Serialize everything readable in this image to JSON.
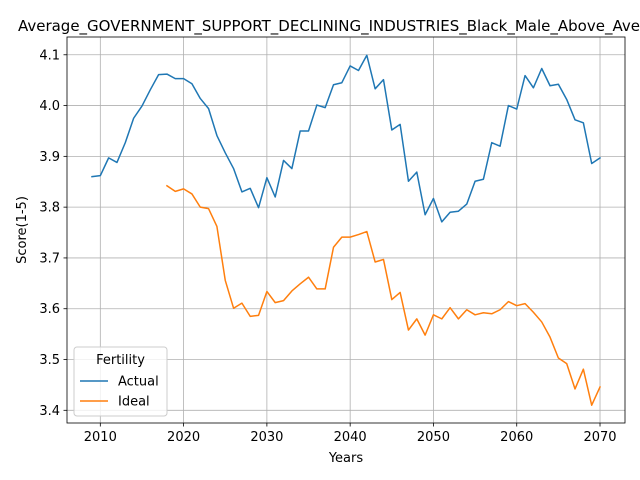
{
  "chart_data": {
    "type": "line",
    "title": "Average_GOVERNMENT_SUPPORT_DECLINING_INDUSTRIES_Black_Male_Above_Average",
    "xlabel": "Years",
    "ylabel": "Score(1-5)",
    "xlim": [
      2006,
      2073
    ],
    "ylim": [
      3.375,
      4.135
    ],
    "x_ticks": [
      2010,
      2020,
      2030,
      2040,
      2050,
      2060,
      2070
    ],
    "y_ticks": [
      3.4,
      3.5,
      3.6,
      3.7,
      3.8,
      3.9,
      4.0,
      4.1
    ],
    "y_tick_labels": [
      "3.4",
      "3.5",
      "3.6",
      "3.7",
      "3.8",
      "3.9",
      "4.0",
      "4.1"
    ],
    "grid": true,
    "legend": {
      "title": "Fertility",
      "placement": "lower-left"
    },
    "series": [
      {
        "name": "Actual",
        "color": "#1f77b4",
        "x": [
          2009,
          2010,
          2011,
          2012,
          2013,
          2014,
          2015,
          2016,
          2017,
          2018,
          2019,
          2020,
          2021,
          2022,
          2023,
          2024,
          2025,
          2026,
          2027,
          2028,
          2029,
          2030,
          2031,
          2032,
          2033,
          2034,
          2035,
          2036,
          2037,
          2038,
          2039,
          2040,
          2041,
          2042,
          2043,
          2044,
          2045,
          2046,
          2047,
          2048,
          2049,
          2050,
          2051,
          2052,
          2053,
          2054,
          2055,
          2056,
          2057,
          2058,
          2059,
          2060,
          2061,
          2062,
          2063,
          2064,
          2065,
          2066,
          2067,
          2068,
          2069,
          2070
        ],
        "values": [
          3.86,
          3.862,
          3.897,
          3.888,
          3.927,
          3.975,
          3.999,
          4.031,
          4.061,
          4.062,
          4.053,
          4.053,
          4.043,
          4.014,
          3.994,
          3.941,
          3.907,
          3.876,
          3.83,
          3.837,
          3.799,
          3.858,
          3.82,
          3.892,
          3.876,
          3.95,
          3.95,
          4.001,
          3.996,
          4.041,
          4.045,
          4.078,
          4.069,
          4.099,
          4.033,
          4.051,
          3.952,
          3.963,
          3.851,
          3.869,
          3.785,
          3.817,
          3.771,
          3.79,
          3.792,
          3.806,
          3.851,
          3.855,
          3.927,
          3.92,
          4.0,
          3.993,
          4.059,
          4.035,
          4.073,
          4.039,
          4.042,
          4.012,
          3.972,
          3.966,
          3.886,
          3.897
        ]
      },
      {
        "name": "Ideal",
        "color": "#ff7f0e",
        "x": [
          2018,
          2019,
          2020,
          2021,
          2022,
          2023,
          2024,
          2025,
          2026,
          2027,
          2028,
          2029,
          2030,
          2031,
          2032,
          2033,
          2034,
          2035,
          2036,
          2037,
          2038,
          2039,
          2040,
          2041,
          2042,
          2043,
          2044,
          2045,
          2046,
          2047,
          2048,
          2049,
          2050,
          2051,
          2052,
          2053,
          2054,
          2055,
          2056,
          2057,
          2058,
          2059,
          2060,
          2061,
          2062,
          2063,
          2064,
          2065,
          2066,
          2067,
          2068,
          2069,
          2070
        ],
        "values": [
          3.842,
          3.831,
          3.836,
          3.826,
          3.8,
          3.797,
          3.762,
          3.656,
          3.601,
          3.611,
          3.585,
          3.587,
          3.634,
          3.612,
          3.616,
          3.635,
          3.649,
          3.662,
          3.639,
          3.639,
          3.721,
          3.741,
          3.741,
          3.746,
          3.752,
          3.692,
          3.697,
          3.618,
          3.632,
          3.558,
          3.58,
          3.548,
          3.588,
          3.58,
          3.602,
          3.58,
          3.598,
          3.588,
          3.592,
          3.59,
          3.598,
          3.614,
          3.606,
          3.61,
          3.593,
          3.574,
          3.544,
          3.503,
          3.492,
          3.442,
          3.481,
          3.41,
          3.446
        ]
      }
    ]
  }
}
